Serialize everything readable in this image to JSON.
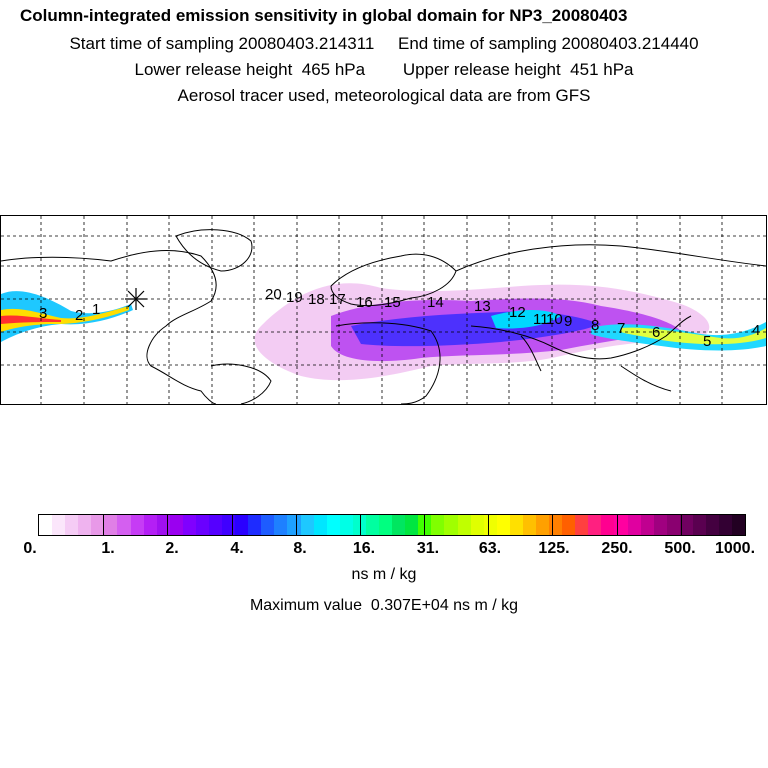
{
  "header": {
    "title": "Column-integrated emission sensitivity in global domain for NP3_20080403",
    "line2": "Start time of sampling 20080403.214311     End time of sampling 20080403.214440",
    "line3": "Lower release height  465 hPa        Upper release height  451 hPa",
    "line4": "Aerosol tracer used, meteorological data are from GFS"
  },
  "map": {
    "trajectory_labels": [
      "20",
      "19",
      "18",
      "17",
      "16",
      "15",
      "14",
      "13",
      "12",
      "11",
      "10",
      "9",
      "8",
      "7",
      "6",
      "5",
      "4",
      "3",
      "2",
      "1"
    ],
    "release_marker": "release-point-asterisk"
  },
  "colorbar": {
    "tick_labels": [
      "0.",
      "1.",
      "2.",
      "4.",
      "8.",
      "16.",
      "31.",
      "63.",
      "125.",
      "250.",
      "500.",
      "1000."
    ],
    "colors": [
      "#ffffff",
      "#fbe6fb",
      "#f5ccf5",
      "#efb3ef",
      "#e899e8",
      "#e07fe6",
      "#d45ff0",
      "#c63cf5",
      "#b41ff5",
      "#a010f0",
      "#9a00f0",
      "#8000ff",
      "#6a00ff",
      "#5500ff",
      "#4000ff",
      "#2a00ff",
      "#1e2cff",
      "#1e5cff",
      "#1e80ff",
      "#1ea0ff",
      "#1ec8ff",
      "#00e6ff",
      "#00ffff",
      "#00ffe6",
      "#00ffcc",
      "#00ffa0",
      "#00ff80",
      "#00e660",
      "#00e640",
      "#40ff00",
      "#80ff00",
      "#a0ff00",
      "#c0ff00",
      "#e0ff00",
      "#f0ff00",
      "#ffff00",
      "#ffe000",
      "#ffc000",
      "#ffa000",
      "#ff8000",
      "#ff6000",
      "#ff4040",
      "#ff2080",
      "#ff0090",
      "#ff00a0",
      "#e000a0",
      "#c00090",
      "#a00080",
      "#8a0070",
      "#700060",
      "#5a0050",
      "#440040",
      "#330033",
      "#220022"
    ]
  },
  "unit": "ns m / kg",
  "max_value_text": "Maximum value  0.307E+04 ns m / kg"
}
